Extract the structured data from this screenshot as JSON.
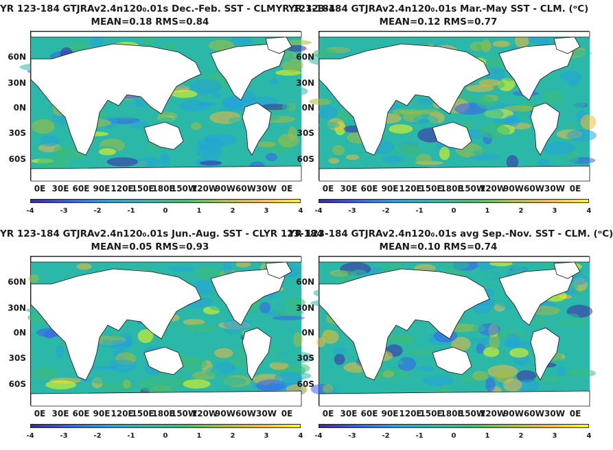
{
  "panels": [
    {
      "title_line1": "YR 123-184 GTJRAv2.4n120₀.01s  Dec.-Feb. SST - CLMYR 123-184",
      "title_line2": "MEAN=0.18   RMS=0.84"
    },
    {
      "title_line1": "YR 123-184 GTJRAv2.4n120₀.01s Mar.-May SST - CLM. (ᵒC)",
      "title_line2": "MEAN=0.12   RMS=0.77"
    },
    {
      "title_line1": "YR 123-184 GTJRAv2.4n120₀.01s Jun.-Aug. SST - CLYR 123-184",
      "title_line2": "MEAN=0.05   RMS=0.93"
    },
    {
      "title_line1": "YR 123-184 GTJRAv2.4n120₀.01s avg Sep.-Nov. SST - CLM. (ᵒC)",
      "title_line2": "MEAN=0.10   RMS=0.74"
    }
  ],
  "axes": {
    "lat_labels": [
      "60N",
      "30N",
      "0N",
      "30S",
      "60S"
    ],
    "lon_labels": [
      "0E",
      "30E",
      "60E",
      "90E",
      "120E",
      "150E",
      "180E",
      "150W",
      "120W",
      "90W",
      "60W",
      "30W",
      "0E"
    ],
    "colorbar_ticks": [
      "-4",
      "-3",
      "-2",
      "-1",
      "0",
      "1",
      "2",
      "3",
      "4"
    ]
  },
  "colors": {
    "ocean_base": "#2bb8a8",
    "land": "#ffffff",
    "colormap": [
      "#3e26a8",
      "#3a5ef0",
      "#22a3dd",
      "#2cb8a4",
      "#3cbc74",
      "#a8be3b",
      "#f4ba3c",
      "#f9fb0e"
    ]
  }
}
